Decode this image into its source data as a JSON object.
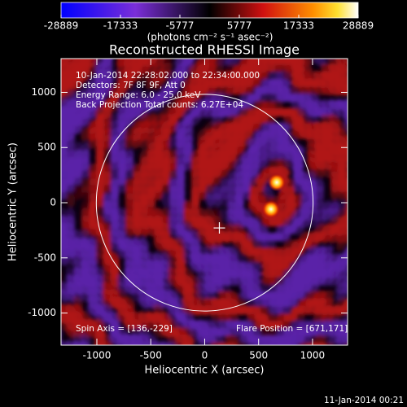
{
  "chart_data": {
    "type": "image",
    "title": "Reconstructed RHESSI Image",
    "colorbar": {
      "lim": [
        -28889,
        28889
      ],
      "ticks": [
        -28889,
        -17333,
        -5777,
        5777,
        17333,
        28889
      ],
      "label": "(photons cm⁻² s⁻¹ asec⁻²)"
    },
    "info": [
      "10-Jan-2014 22:28:02.000 to 22:34:00.000",
      "Detectors: 7F 8F 9F, Att 0",
      "Energy Range: 6.0 - 25.0 keV",
      "Back Projection    Total counts: 6.27E+04"
    ],
    "spin_axis": {
      "label": "Spin Axis = [136,-229]",
      "value": [
        136,
        -229
      ]
    },
    "flare_position": {
      "label": "Flare Position = [671,171]",
      "value": [
        671,
        171
      ]
    },
    "sources": [
      {
        "x": 668,
        "y": 184
      },
      {
        "x": 615,
        "y": -59
      }
    ],
    "solar_radius": 1005,
    "xlabel": "Heliocentric X (arcsec)",
    "ylabel": "Heliocentric Y (arcsec)",
    "xlim": [
      -1332,
      1325
    ],
    "ylim": [
      -1291,
      1306
    ],
    "xticks": [
      -1000,
      -500,
      0,
      500,
      1000
    ],
    "yticks": [
      -1000,
      -500,
      0,
      500,
      1000
    ],
    "timestamp": "11-Jan-2014 00:21"
  }
}
